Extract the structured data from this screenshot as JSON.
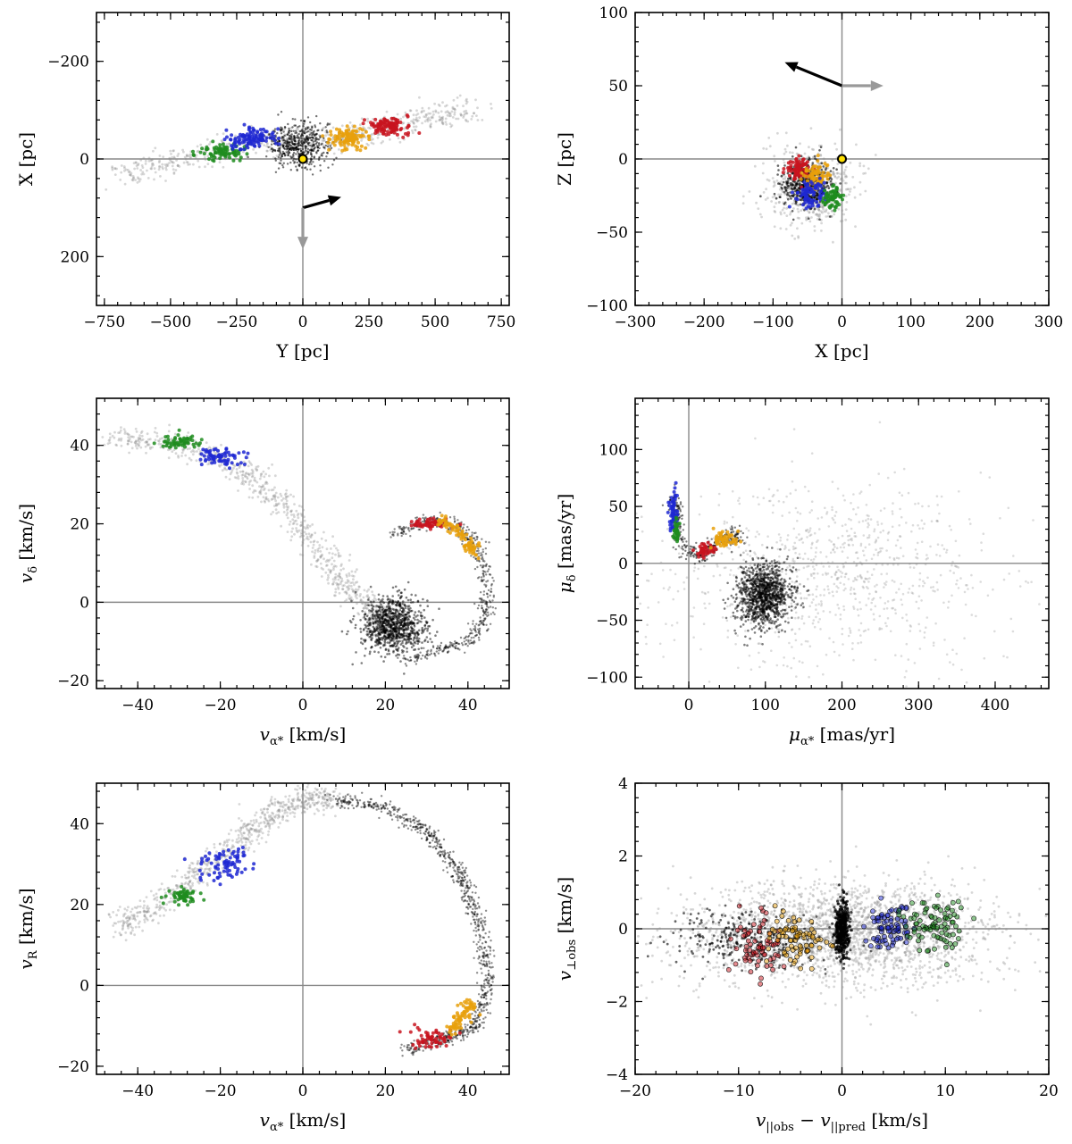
{
  "figure": {
    "layout": "3x2 grid of scatter panels"
  },
  "colors": {
    "red": "#c8141e",
    "orange": "#e8a00c",
    "blue": "#1e28d2",
    "green": "#1e8c1e",
    "black": "#000000",
    "gray_arrow": "#999999",
    "sun_fill": "#ffe000",
    "axis_line": "#888888"
  },
  "chart_data": [
    {
      "id": "p1",
      "type": "scatter",
      "xlabel": "Y [pc]",
      "ylabel": "X [pc]",
      "xlim": [
        -780,
        780
      ],
      "ylim": [
        300,
        -300
      ],
      "xticks": [
        -750,
        -500,
        -250,
        0,
        250,
        500,
        750
      ],
      "xtick_labels": [
        "−750",
        "−500",
        "−250",
        "0",
        "250",
        "500",
        "750"
      ],
      "yticks": [
        -200,
        0,
        200
      ],
      "ytick_labels": [
        "−200",
        "0",
        "200"
      ],
      "zero_lines": true,
      "sun": [
        0,
        0
      ],
      "arrows": [
        {
          "color": "black",
          "from": [
            0,
            100
          ],
          "to": [
            145,
            78
          ]
        },
        {
          "color": "gray",
          "from": [
            0,
            100
          ],
          "to": [
            0,
            185
          ]
        }
      ],
      "clusters": [
        {
          "color": "gray",
          "n": 600,
          "path": [
            [
              -700,
              30
            ],
            [
              -500,
              10
            ],
            [
              -250,
              -30
            ],
            [
              0,
              -40
            ],
            [
              250,
              -50
            ],
            [
              450,
              -80
            ],
            [
              640,
              -100
            ]
          ],
          "sx": 40,
          "sy": 14,
          "alpha": 0.35,
          "r": 1.4
        },
        {
          "color": "black",
          "n": 500,
          "cx": -20,
          "cy": -30,
          "sx": 60,
          "sy": 22,
          "alpha": 0.55,
          "r": 1.2
        },
        {
          "color": "green",
          "n": 90,
          "cx": -300,
          "cy": -15,
          "sx": 45,
          "sy": 8,
          "alpha": 0.85,
          "r": 2
        },
        {
          "color": "blue",
          "n": 110,
          "cx": -190,
          "cy": -42,
          "sx": 45,
          "sy": 10,
          "alpha": 0.85,
          "r": 2
        },
        {
          "color": "orange",
          "n": 110,
          "cx": 170,
          "cy": -42,
          "sx": 38,
          "sy": 10,
          "alpha": 0.85,
          "r": 2
        },
        {
          "color": "red",
          "n": 110,
          "cx": 320,
          "cy": -68,
          "sx": 40,
          "sy": 10,
          "alpha": 0.85,
          "r": 2
        }
      ]
    },
    {
      "id": "p2",
      "type": "scatter",
      "xlabel": "X [pc]",
      "ylabel": "Z [pc]",
      "xlim": [
        -300,
        300
      ],
      "ylim": [
        -100,
        100
      ],
      "xticks": [
        -300,
        -200,
        -100,
        0,
        100,
        200,
        300
      ],
      "xtick_labels": [
        "−300",
        "−200",
        "−100",
        "0",
        "100",
        "200",
        "300"
      ],
      "yticks": [
        -100,
        -50,
        0,
        50,
        100
      ],
      "ytick_labels": [
        "−100",
        "−50",
        "0",
        "50",
        "100"
      ],
      "zero_lines": true,
      "sun": [
        0,
        0
      ],
      "arrows": [
        {
          "color": "black",
          "from": [
            0,
            50
          ],
          "to": [
            -83,
            66
          ]
        },
        {
          "color": "gray",
          "from": [
            0,
            50
          ],
          "to": [
            60,
            50
          ]
        }
      ],
      "clusters": [
        {
          "color": "gray",
          "n": 500,
          "cx": -45,
          "cy": -20,
          "sx": 32,
          "sy": 14,
          "alpha": 0.35,
          "r": 1.4
        },
        {
          "color": "black",
          "n": 500,
          "cx": -50,
          "cy": -17,
          "sx": 18,
          "sy": 8,
          "alpha": 0.6,
          "r": 1.3
        },
        {
          "color": "red",
          "n": 80,
          "cx": -62,
          "cy": -7,
          "sx": 10,
          "sy": 4,
          "alpha": 0.85,
          "r": 2
        },
        {
          "color": "orange",
          "n": 80,
          "cx": -38,
          "cy": -12,
          "sx": 10,
          "sy": 5,
          "alpha": 0.85,
          "r": 2
        },
        {
          "color": "blue",
          "n": 80,
          "cx": -45,
          "cy": -25,
          "sx": 10,
          "sy": 5,
          "alpha": 0.85,
          "r": 2
        },
        {
          "color": "green",
          "n": 70,
          "cx": -15,
          "cy": -27,
          "sx": 7,
          "sy": 4,
          "alpha": 0.85,
          "r": 2
        }
      ]
    },
    {
      "id": "p3",
      "type": "scatter",
      "xlabel": "v_α* [km/s]",
      "ylabel": "v_δ [km/s]",
      "xlim": [
        -50,
        50
      ],
      "ylim": [
        -22,
        52
      ],
      "xticks": [
        -40,
        -20,
        0,
        20,
        40
      ],
      "xtick_labels": [
        "−40",
        "−20",
        "0",
        "20",
        "40"
      ],
      "yticks": [
        -20,
        0,
        20,
        40
      ],
      "ytick_labels": [
        "−20",
        "0",
        "20",
        "40"
      ],
      "zero_lines": true,
      "clusters": [
        {
          "color": "gray",
          "n": 800,
          "path": [
            [
              -45,
              42
            ],
            [
              -30,
              40
            ],
            [
              -15,
              34
            ],
            [
              -5,
              25
            ],
            [
              2,
              15
            ],
            [
              10,
              5
            ],
            [
              18,
              -3
            ],
            [
              22,
              -6
            ]
          ],
          "sx": 2.0,
          "sy": 1.6,
          "alpha": 0.35,
          "r": 1.4
        },
        {
          "color": "black",
          "n": 900,
          "cx": 22,
          "cy": -6,
          "sx": 4,
          "sy": 3.5,
          "alpha": 0.5,
          "r": 1.3
        },
        {
          "color": "black",
          "n": 500,
          "path": [
            [
              22,
              17
            ],
            [
              30,
              21
            ],
            [
              37,
              20
            ],
            [
              42,
              15
            ],
            [
              44.5,
              5
            ],
            [
              44,
              -5
            ],
            [
              40,
              -10
            ],
            [
              33,
              -12
            ],
            [
              25,
              -15
            ]
          ],
          "sx": 1.0,
          "sy": 0.8,
          "alpha": 0.45,
          "r": 1.2
        },
        {
          "color": "green",
          "n": 60,
          "cx": -30,
          "cy": 41,
          "sx": 2.5,
          "sy": 0.8,
          "alpha": 0.85,
          "r": 2
        },
        {
          "color": "blue",
          "n": 70,
          "cx": -20,
          "cy": 37,
          "sx": 3,
          "sy": 1.2,
          "alpha": 0.85,
          "r": 2
        },
        {
          "color": "red",
          "n": 60,
          "cx": 31,
          "cy": 20,
          "sx": 2.2,
          "sy": 0.7,
          "alpha": 0.85,
          "r": 2
        },
        {
          "color": "orange",
          "n": 90,
          "path": [
            [
              33,
              21
            ],
            [
              37,
              19
            ],
            [
              40,
              15
            ],
            [
              42,
              12
            ]
          ],
          "sx": 0.9,
          "sy": 0.7,
          "alpha": 0.85,
          "r": 2
        }
      ]
    },
    {
      "id": "p4",
      "type": "scatter",
      "xlabel": "μ_α* [mas/yr]",
      "ylabel": "μ_δ [mas/yr]",
      "xlim": [
        -70,
        470
      ],
      "ylim": [
        -110,
        145
      ],
      "xticks": [
        0,
        100,
        200,
        300,
        400
      ],
      "xtick_labels": [
        "0",
        "100",
        "200",
        "300",
        "400"
      ],
      "yticks": [
        -100,
        -50,
        0,
        50,
        100
      ],
      "ytick_labels": [
        "−100",
        "−50",
        "0",
        "50",
        "100"
      ],
      "zero_lines": true,
      "clusters": [
        {
          "color": "gray",
          "n": 900,
          "cx": 180,
          "cy": -10,
          "sx": 110,
          "sy": 40,
          "alpha": 0.3,
          "r": 1.3
        },
        {
          "color": "black",
          "n": 1100,
          "cx": 98,
          "cy": -28,
          "sx": 18,
          "sy": 14,
          "alpha": 0.5,
          "r": 1.3
        },
        {
          "color": "black",
          "n": 300,
          "path": [
            [
              -20,
              60
            ],
            [
              -15,
              40
            ],
            [
              -10,
              15
            ],
            [
              10,
              5
            ],
            [
              30,
              15
            ],
            [
              55,
              25
            ],
            [
              70,
              25
            ]
          ],
          "sx": 4,
          "sy": 4,
          "alpha": 0.5,
          "r": 1.2
        },
        {
          "color": "blue",
          "n": 70,
          "cx": -20,
          "cy": 45,
          "sx": 3,
          "sy": 9,
          "alpha": 0.85,
          "r": 2
        },
        {
          "color": "green",
          "n": 40,
          "cx": -16,
          "cy": 28,
          "sx": 2,
          "sy": 5,
          "alpha": 0.85,
          "r": 2
        },
        {
          "color": "red",
          "n": 40,
          "cx": 22,
          "cy": 12,
          "sx": 6,
          "sy": 3,
          "alpha": 0.85,
          "r": 2
        },
        {
          "color": "orange",
          "n": 60,
          "cx": 45,
          "cy": 22,
          "sx": 8,
          "sy": 3,
          "alpha": 0.85,
          "r": 2
        }
      ]
    },
    {
      "id": "p5",
      "type": "scatter",
      "xlabel": "v_α* [km/s]",
      "ylabel": "v_R [km/s]",
      "xlim": [
        -50,
        50
      ],
      "ylim": [
        -22,
        50
      ],
      "xticks": [
        -40,
        -20,
        0,
        20,
        40
      ],
      "xtick_labels": [
        "−40",
        "−20",
        "0",
        "20",
        "40"
      ],
      "yticks": [
        -20,
        0,
        20,
        40
      ],
      "ytick_labels": [
        "−20",
        "0",
        "20",
        "40"
      ],
      "zero_lines": true,
      "clusters": [
        {
          "color": "gray",
          "n": 700,
          "path": [
            [
              -45,
              14
            ],
            [
              -35,
              20
            ],
            [
              -25,
              28
            ],
            [
              -15,
              36
            ],
            [
              -8,
              42
            ],
            [
              0,
              46
            ],
            [
              8,
              46
            ]
          ],
          "sx": 1.6,
          "sy": 1.6,
          "alpha": 0.35,
          "r": 1.4
        },
        {
          "color": "black",
          "n": 900,
          "path": [
            [
              8,
              46
            ],
            [
              20,
              44
            ],
            [
              30,
              38
            ],
            [
              38,
              28
            ],
            [
              43,
              15
            ],
            [
              45,
              0
            ],
            [
              42,
              -10
            ],
            [
              35,
              -13
            ],
            [
              25,
              -16
            ]
          ],
          "sx": 1.0,
          "sy": 0.9,
          "alpha": 0.45,
          "r": 1.2
        },
        {
          "color": "green",
          "n": 60,
          "cx": -29,
          "cy": 22,
          "sx": 2,
          "sy": 1,
          "alpha": 0.85,
          "r": 2
        },
        {
          "color": "blue",
          "n": 80,
          "cx": -19,
          "cy": 30,
          "sx": 3,
          "sy": 2,
          "alpha": 0.85,
          "r": 2
        },
        {
          "color": "red",
          "n": 60,
          "cx": 31,
          "cy": -13,
          "sx": 2.5,
          "sy": 1.2,
          "alpha": 0.85,
          "r": 2
        },
        {
          "color": "orange",
          "n": 80,
          "path": [
            [
              35,
              -11
            ],
            [
              38,
              -9
            ],
            [
              40,
              -6
            ],
            [
              41,
              -4
            ]
          ],
          "sx": 1,
          "sy": 0.8,
          "alpha": 0.85,
          "r": 2
        }
      ]
    },
    {
      "id": "p6",
      "type": "scatter",
      "xlabel": "v_||obs − v_||pred [km/s]",
      "ylabel": "v_⊥obs [km/s]",
      "xlim": [
        -20,
        20
      ],
      "ylim": [
        -4,
        4
      ],
      "xticks": [
        -20,
        -10,
        0,
        10,
        20
      ],
      "xtick_labels": [
        "−20",
        "−10",
        "0",
        "10",
        "20"
      ],
      "yticks": [
        -4,
        -2,
        0,
        2,
        4
      ],
      "ytick_labels": [
        "−4",
        "−2",
        "0",
        "2",
        "4"
      ],
      "zero_lines": true,
      "clusters": [
        {
          "color": "gray",
          "n": 2200,
          "cx": 0,
          "cy": -0.1,
          "sx": 7.5,
          "sy": 0.7,
          "alpha": 0.35,
          "r": 1.4
        },
        {
          "color": "black",
          "n": 500,
          "cx": 0,
          "cy": 0,
          "sx": 0.35,
          "sy": 0.4,
          "alpha": 0.7,
          "r": 1.5
        },
        {
          "color": "black",
          "n": 250,
          "cx": -9,
          "cy": -0.3,
          "sx": 4,
          "sy": 0.4,
          "alpha": 0.6,
          "r": 1.4
        },
        {
          "color": "red",
          "n": 70,
          "cx": -8,
          "cy": -0.45,
          "sx": 1.4,
          "sy": 0.45,
          "alpha": 0.9,
          "r": 2.6,
          "ring": true
        },
        {
          "color": "orange",
          "n": 80,
          "cx": -4.5,
          "cy": -0.35,
          "sx": 1.3,
          "sy": 0.4,
          "alpha": 0.9,
          "r": 2.6,
          "ring": true
        },
        {
          "color": "blue",
          "n": 80,
          "cx": 4.5,
          "cy": 0.05,
          "sx": 1.2,
          "sy": 0.35,
          "alpha": 0.9,
          "r": 2.6,
          "ring": true
        },
        {
          "color": "green",
          "n": 90,
          "cx": 9,
          "cy": 0.1,
          "sx": 1.5,
          "sy": 0.35,
          "alpha": 0.9,
          "r": 2.6,
          "ring": true
        }
      ]
    }
  ]
}
